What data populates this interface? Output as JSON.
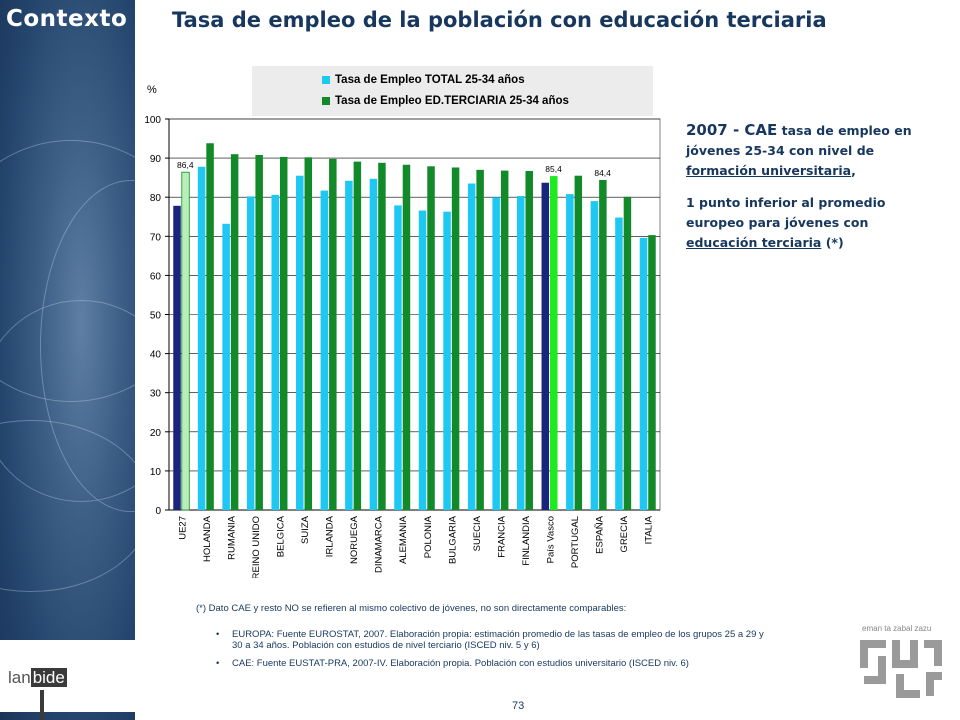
{
  "header": {
    "section": "Contexto",
    "title": "Tasa de empleo de la población con educación terciaria"
  },
  "chart_data": {
    "type": "bar",
    "ylabel": "%",
    "ylim": [
      0,
      100
    ],
    "yticks": [
      0,
      10,
      20,
      30,
      40,
      50,
      60,
      70,
      80,
      90,
      100
    ],
    "grid": true,
    "legend_position": "top",
    "categories": [
      "UE27",
      "HOLANDA",
      "RUMANIA",
      "REINO UNIDO",
      "BELGICA",
      "SUIZA",
      "IRLANDA",
      "NORUEGA",
      "DINAMARCA",
      "ALEMANIA",
      "POLONIA",
      "BULGARIA",
      "SUECIA",
      "FRANCIA",
      "FINLANDIA",
      "País Vasco",
      "PORTUGAL",
      "ESPAÑA",
      "GRECIA",
      "ITALIA"
    ],
    "series": [
      {
        "name": "Tasa de Empleo TOTAL 25-34 años",
        "color": "#1fc8f2",
        "values": [
          77.8,
          87.8,
          73.2,
          80.2,
          80.6,
          85.5,
          81.7,
          84.2,
          84.7,
          77.9,
          76.6,
          76.3,
          83.5,
          80.0,
          80.3,
          83.7,
          80.8,
          79.0,
          74.8,
          69.6
        ]
      },
      {
        "name": "Tasa de Empleo ED.TERCIARIA 25-34 años",
        "color": "#138a2a",
        "values": [
          86.4,
          93.8,
          91.0,
          90.8,
          90.3,
          90.2,
          89.8,
          89.1,
          88.8,
          88.3,
          87.9,
          87.6,
          87.0,
          86.8,
          86.7,
          85.4,
          85.5,
          84.4,
          80.1,
          70.3
        ]
      }
    ],
    "highlight": {
      "UE27": [
        "#1a237e",
        "#b6f0b6"
      ],
      "País Vasco": [
        "#1a237e",
        "#1eea1e"
      ]
    },
    "data_labels": [
      {
        "category": "UE27",
        "series": 1,
        "text": "86,4"
      },
      {
        "category": "País Vasco",
        "series": 1,
        "text": "85,4"
      },
      {
        "category": "ESPAÑA",
        "series": 1,
        "text": "84,4"
      }
    ]
  },
  "side": {
    "year": "2007 - CAE",
    "l1": " tasa de empleo en jóvenes 25-34 con nivel de ",
    "l1u": "formación universitaria",
    "l1end": ",",
    "l2": "1 punto inferior al promedio europeo para jóvenes con ",
    "l2u": "educación terciaria",
    "l2end": " (*)"
  },
  "footnote": "(*) Dato CAE y resto NO se refieren al mismo colectivo de jóvenes, no son directamente comparables:",
  "sources": [
    "EUROPA: Fuente EUROSTAT, 2007. Elaboración propia: estimación promedio de las tasas de empleo de los grupos 25 a 29 y 30 a 34 años. Población con estudios de nivel terciario (ISCED niv. 5 y 6)",
    "CAE: Fuente EUSTAT-PRA, 2007-IV. Elaboración propia. Población con estudios universitario (ISCED niv. 6)"
  ],
  "page_number": "73",
  "brand": {
    "pre": "lan",
    "hl": "bide"
  },
  "gov_tagline": "eman ta zabal zazu"
}
